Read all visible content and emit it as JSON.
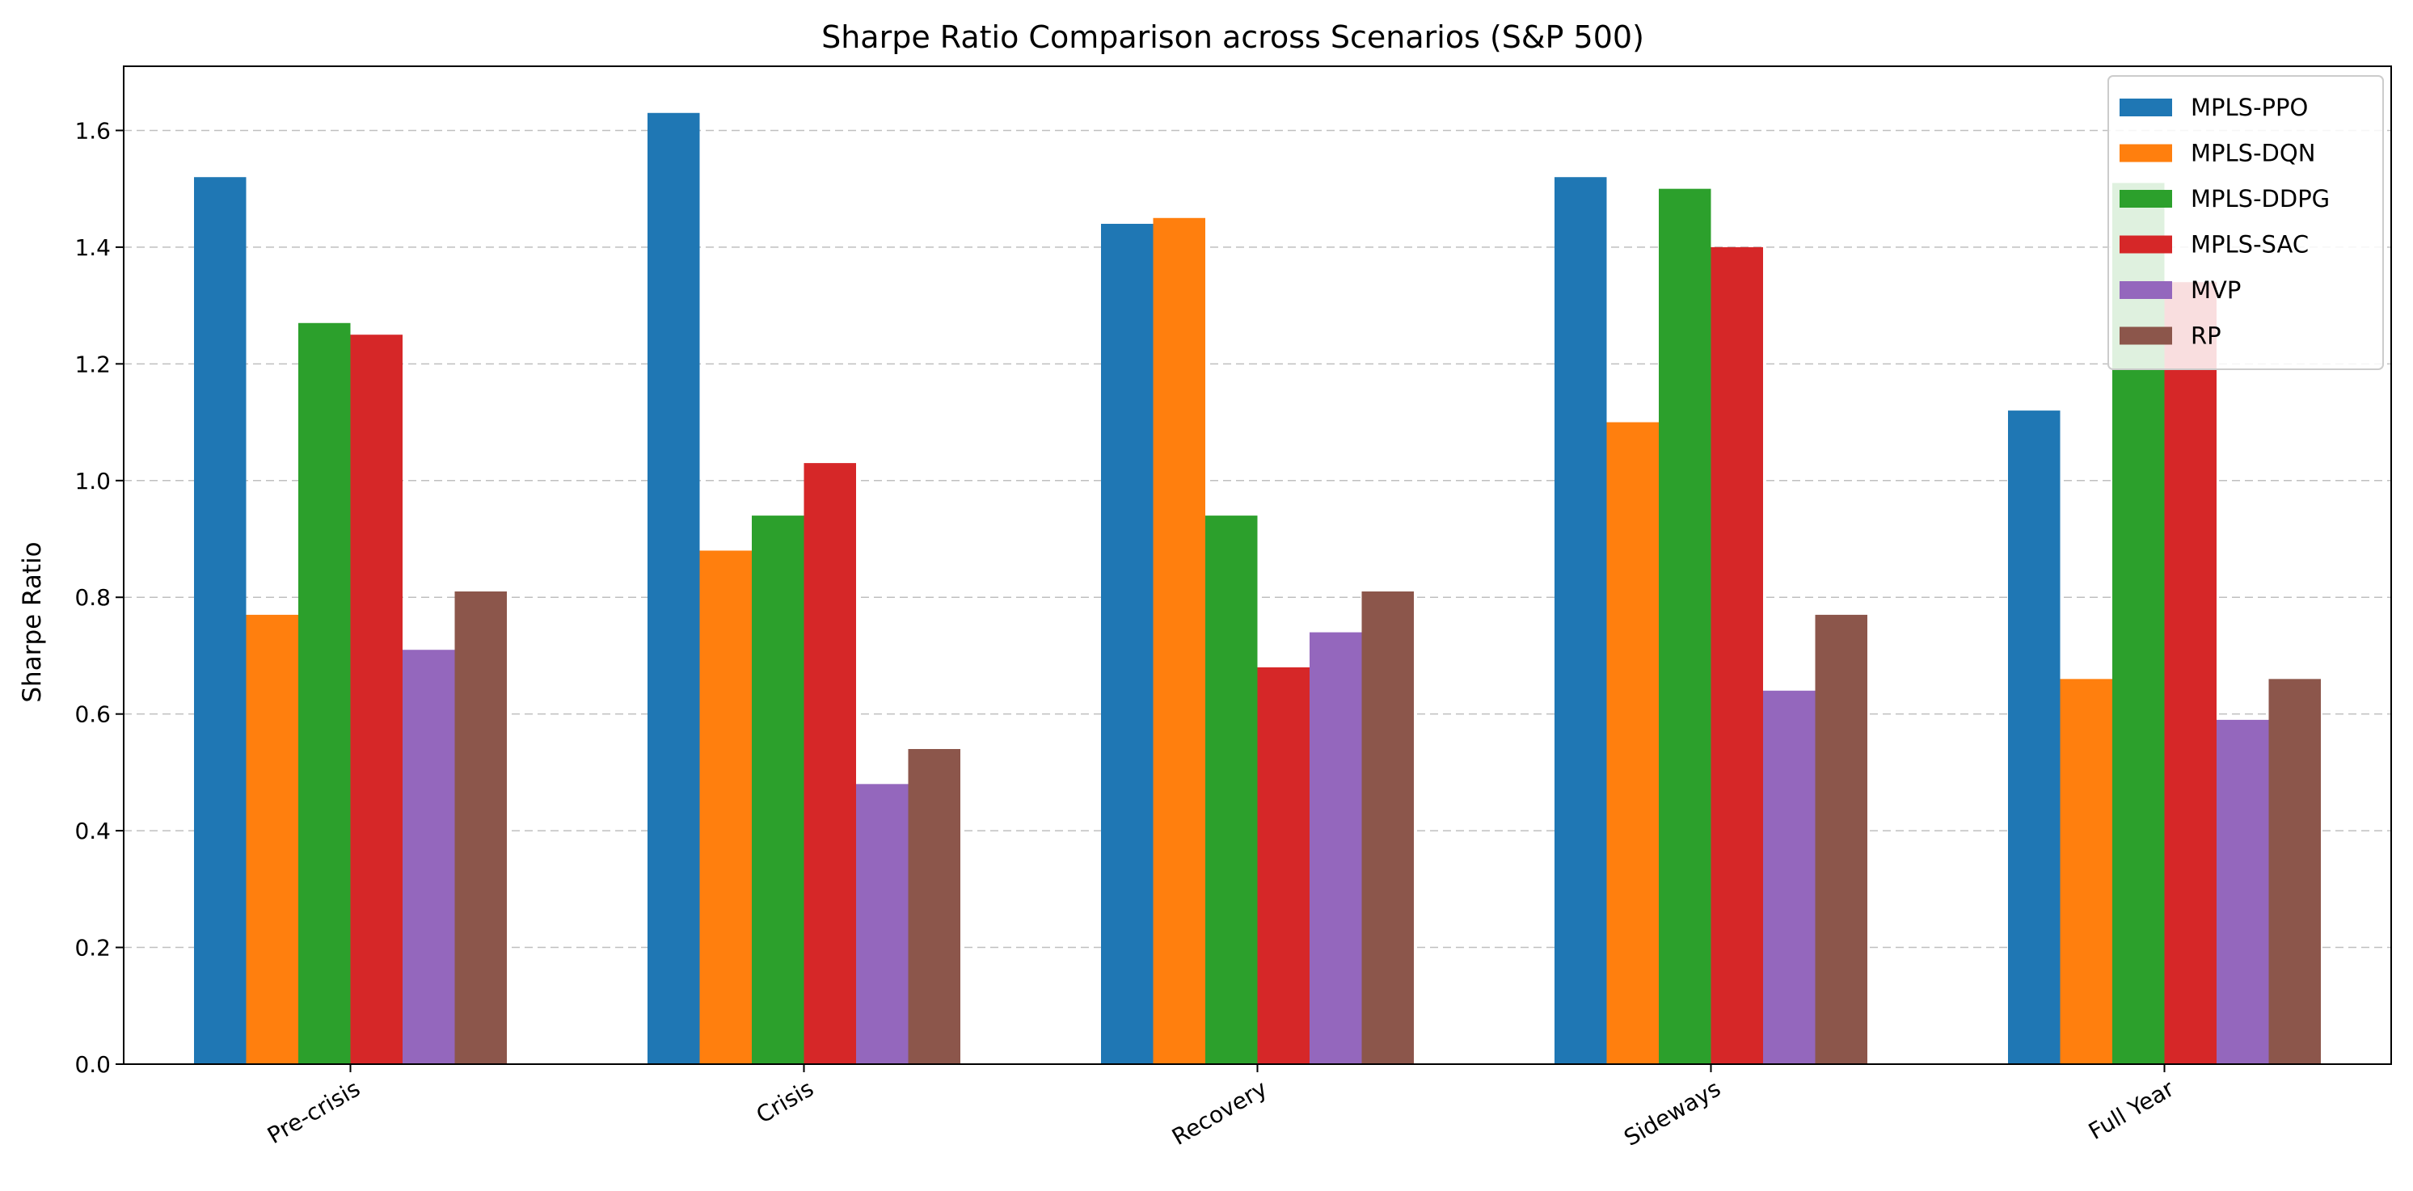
{
  "chart_data": {
    "type": "bar",
    "title": "Sharpe Ratio Comparison across Scenarios (S&P 500)",
    "xlabel": "",
    "ylabel": "Sharpe Ratio",
    "categories": [
      "Pre-crisis",
      "Crisis",
      "Recovery",
      "Sideways",
      "Full Year"
    ],
    "ylim": [
      0,
      1.71
    ],
    "yticks": [
      "0.0",
      "0.2",
      "0.4",
      "0.6",
      "0.8",
      "1.0",
      "1.2",
      "1.4",
      "1.6"
    ],
    "grid": "y-dashed",
    "legend_position": "top-right",
    "series": [
      {
        "name": "MPLS-PPO",
        "color": "#1f77b4",
        "values": [
          1.52,
          1.63,
          1.44,
          1.52,
          1.12
        ]
      },
      {
        "name": "MPLS-DQN",
        "color": "#ff7f0e",
        "values": [
          0.77,
          0.88,
          1.45,
          1.1,
          0.66
        ]
      },
      {
        "name": "MPLS-DDPG",
        "color": "#2ca02c",
        "values": [
          1.27,
          0.94,
          0.94,
          1.5,
          1.51
        ]
      },
      {
        "name": "MPLS-SAC",
        "color": "#d62728",
        "values": [
          1.25,
          1.03,
          0.68,
          1.4,
          1.34
        ]
      },
      {
        "name": "MVP",
        "color": "#9467bd",
        "values": [
          0.71,
          0.48,
          0.74,
          0.64,
          0.59
        ]
      },
      {
        "name": "RP",
        "color": "#8c564b",
        "values": [
          0.81,
          0.54,
          0.81,
          0.77,
          0.66
        ]
      }
    ]
  }
}
